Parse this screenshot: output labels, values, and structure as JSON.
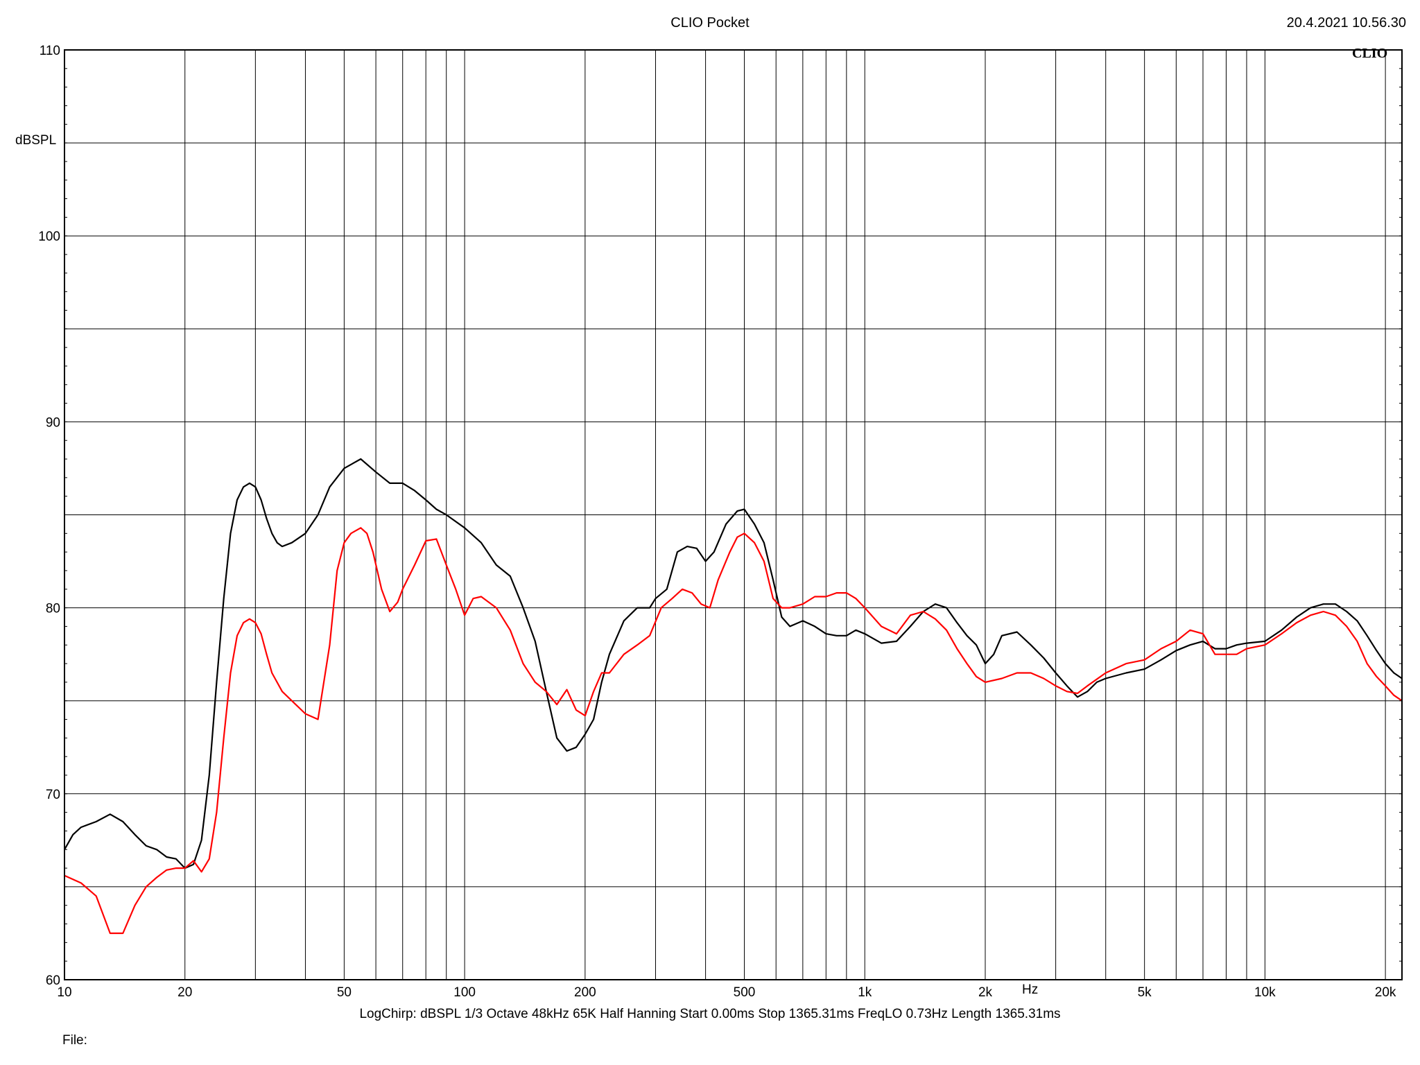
{
  "header": {
    "title": "CLIO Pocket",
    "datetime": "20.4.2021 10.56.30",
    "logo": "CLIO"
  },
  "footer": {
    "params": "LogChirp:  dBSPL   1/3 Octave   48kHz   65K   Half Hanning   Start 0.00ms    Stop 1365.31ms    FreqLO 0.73Hz    Length 1365.31ms",
    "file": "File:"
  },
  "chart_data": {
    "type": "line",
    "title": "CLIO Pocket",
    "xlabel": "Hz",
    "ylabel": "dBSPL",
    "xscale": "log",
    "xlim": [
      10,
      22000
    ],
    "ylim": [
      60,
      110
    ],
    "grid": true,
    "y_ticks": [
      60,
      70,
      80,
      90,
      100,
      110
    ],
    "x_ticks": [
      {
        "v": 10,
        "label": "10"
      },
      {
        "v": 20,
        "label": "20"
      },
      {
        "v": 50,
        "label": "50"
      },
      {
        "v": 100,
        "label": "100"
      },
      {
        "v": 200,
        "label": "200"
      },
      {
        "v": 500,
        "label": "500"
      },
      {
        "v": 1000,
        "label": "1k"
      },
      {
        "v": 2000,
        "label": "2k"
      },
      {
        "v": 5000,
        "label": "5k"
      },
      {
        "v": 10000,
        "label": "10k"
      },
      {
        "v": 20000,
        "label": "20k"
      }
    ],
    "series": [
      {
        "color": "#000000",
        "points": [
          [
            10,
            67
          ],
          [
            10.5,
            67.8
          ],
          [
            11,
            68.2
          ],
          [
            12,
            68.5
          ],
          [
            13,
            68.9
          ],
          [
            14,
            68.5
          ],
          [
            15,
            67.8
          ],
          [
            16,
            67.2
          ],
          [
            17,
            67
          ],
          [
            18,
            66.6
          ],
          [
            19,
            66.5
          ],
          [
            20,
            66
          ],
          [
            21,
            66.2
          ],
          [
            22,
            67.5
          ],
          [
            23,
            71
          ],
          [
            24,
            76
          ],
          [
            25,
            80.5
          ],
          [
            26,
            84
          ],
          [
            27,
            85.8
          ],
          [
            28,
            86.5
          ],
          [
            29,
            86.7
          ],
          [
            30,
            86.5
          ],
          [
            31,
            85.8
          ],
          [
            32,
            84.8
          ],
          [
            33,
            84
          ],
          [
            34,
            83.5
          ],
          [
            35,
            83.3
          ],
          [
            37,
            83.5
          ],
          [
            40,
            84
          ],
          [
            43,
            85
          ],
          [
            46,
            86.5
          ],
          [
            50,
            87.5
          ],
          [
            55,
            88
          ],
          [
            60,
            87.3
          ],
          [
            65,
            86.7
          ],
          [
            70,
            86.7
          ],
          [
            75,
            86.3
          ],
          [
            80,
            85.8
          ],
          [
            85,
            85.3
          ],
          [
            90,
            85
          ],
          [
            100,
            84.3
          ],
          [
            110,
            83.5
          ],
          [
            120,
            82.3
          ],
          [
            130,
            81.7
          ],
          [
            140,
            80
          ],
          [
            150,
            78.2
          ],
          [
            160,
            75.5
          ],
          [
            170,
            73
          ],
          [
            180,
            72.3
          ],
          [
            190,
            72.5
          ],
          [
            200,
            73.2
          ],
          [
            210,
            74
          ],
          [
            220,
            76
          ],
          [
            230,
            77.5
          ],
          [
            250,
            79.3
          ],
          [
            270,
            80
          ],
          [
            290,
            80
          ],
          [
            300,
            80.5
          ],
          [
            320,
            81
          ],
          [
            340,
            83
          ],
          [
            360,
            83.3
          ],
          [
            380,
            83.2
          ],
          [
            400,
            82.5
          ],
          [
            420,
            83
          ],
          [
            450,
            84.5
          ],
          [
            480,
            85.2
          ],
          [
            500,
            85.3
          ],
          [
            530,
            84.5
          ],
          [
            560,
            83.5
          ],
          [
            590,
            81.5
          ],
          [
            620,
            79.5
          ],
          [
            650,
            79
          ],
          [
            700,
            79.3
          ],
          [
            750,
            79
          ],
          [
            800,
            78.6
          ],
          [
            850,
            78.5
          ],
          [
            900,
            78.5
          ],
          [
            950,
            78.8
          ],
          [
            1000,
            78.6
          ],
          [
            1100,
            78.1
          ],
          [
            1200,
            78.2
          ],
          [
            1300,
            79
          ],
          [
            1400,
            79.8
          ],
          [
            1500,
            80.2
          ],
          [
            1600,
            80
          ],
          [
            1700,
            79.2
          ],
          [
            1800,
            78.5
          ],
          [
            1900,
            78
          ],
          [
            2000,
            77
          ],
          [
            2100,
            77.5
          ],
          [
            2200,
            78.5
          ],
          [
            2400,
            78.7
          ],
          [
            2600,
            78
          ],
          [
            2800,
            77.3
          ],
          [
            3000,
            76.5
          ],
          [
            3200,
            75.8
          ],
          [
            3400,
            75.2
          ],
          [
            3600,
            75.5
          ],
          [
            3800,
            76
          ],
          [
            4000,
            76.2
          ],
          [
            4500,
            76.5
          ],
          [
            5000,
            76.7
          ],
          [
            5500,
            77.2
          ],
          [
            6000,
            77.7
          ],
          [
            6500,
            78
          ],
          [
            7000,
            78.2
          ],
          [
            7500,
            77.8
          ],
          [
            8000,
            77.8
          ],
          [
            8500,
            78
          ],
          [
            9000,
            78.1
          ],
          [
            10000,
            78.2
          ],
          [
            11000,
            78.8
          ],
          [
            12000,
            79.5
          ],
          [
            13000,
            80
          ],
          [
            14000,
            80.2
          ],
          [
            15000,
            80.2
          ],
          [
            16000,
            79.8
          ],
          [
            17000,
            79.3
          ],
          [
            18000,
            78.5
          ],
          [
            19000,
            77.7
          ],
          [
            20000,
            77
          ],
          [
            21000,
            76.5
          ],
          [
            22000,
            76.2
          ]
        ]
      },
      {
        "color": "#ff0000",
        "points": [
          [
            10,
            65.6
          ],
          [
            11,
            65.2
          ],
          [
            12,
            64.5
          ],
          [
            13,
            62.5
          ],
          [
            14,
            62.5
          ],
          [
            15,
            64
          ],
          [
            16,
            65
          ],
          [
            17,
            65.5
          ],
          [
            18,
            65.9
          ],
          [
            19,
            66
          ],
          [
            20,
            66
          ],
          [
            21,
            66.4
          ],
          [
            22,
            65.8
          ],
          [
            23,
            66.5
          ],
          [
            24,
            69
          ],
          [
            25,
            73
          ],
          [
            26,
            76.5
          ],
          [
            27,
            78.5
          ],
          [
            28,
            79.2
          ],
          [
            29,
            79.4
          ],
          [
            30,
            79.2
          ],
          [
            31,
            78.6
          ],
          [
            32,
            77.5
          ],
          [
            33,
            76.5
          ],
          [
            35,
            75.5
          ],
          [
            37,
            75
          ],
          [
            40,
            74.3
          ],
          [
            43,
            74
          ],
          [
            46,
            78
          ],
          [
            48,
            82
          ],
          [
            50,
            83.5
          ],
          [
            52,
            84
          ],
          [
            55,
            84.3
          ],
          [
            57,
            84
          ],
          [
            59,
            83
          ],
          [
            62,
            81
          ],
          [
            65,
            79.8
          ],
          [
            68,
            80.3
          ],
          [
            70,
            81
          ],
          [
            75,
            82.3
          ],
          [
            80,
            83.6
          ],
          [
            85,
            83.7
          ],
          [
            90,
            82.3
          ],
          [
            95,
            81
          ],
          [
            100,
            79.6
          ],
          [
            105,
            80.5
          ],
          [
            110,
            80.6
          ],
          [
            120,
            80
          ],
          [
            130,
            78.8
          ],
          [
            140,
            77
          ],
          [
            150,
            76
          ],
          [
            160,
            75.5
          ],
          [
            170,
            74.8
          ],
          [
            180,
            75.6
          ],
          [
            190,
            74.5
          ],
          [
            200,
            74.2
          ],
          [
            210,
            75.5
          ],
          [
            220,
            76.5
          ],
          [
            230,
            76.5
          ],
          [
            250,
            77.5
          ],
          [
            270,
            78
          ],
          [
            290,
            78.5
          ],
          [
            310,
            80
          ],
          [
            330,
            80.5
          ],
          [
            350,
            81
          ],
          [
            370,
            80.8
          ],
          [
            390,
            80.2
          ],
          [
            410,
            80
          ],
          [
            430,
            81.5
          ],
          [
            460,
            83
          ],
          [
            480,
            83.8
          ],
          [
            500,
            84
          ],
          [
            530,
            83.5
          ],
          [
            560,
            82.5
          ],
          [
            590,
            80.5
          ],
          [
            620,
            80
          ],
          [
            650,
            80
          ],
          [
            700,
            80.2
          ],
          [
            750,
            80.6
          ],
          [
            800,
            80.6
          ],
          [
            850,
            80.8
          ],
          [
            900,
            80.8
          ],
          [
            950,
            80.5
          ],
          [
            1000,
            80
          ],
          [
            1100,
            79
          ],
          [
            1200,
            78.6
          ],
          [
            1300,
            79.6
          ],
          [
            1400,
            79.8
          ],
          [
            1500,
            79.4
          ],
          [
            1600,
            78.8
          ],
          [
            1700,
            77.8
          ],
          [
            1800,
            77
          ],
          [
            1900,
            76.3
          ],
          [
            2000,
            76
          ],
          [
            2200,
            76.2
          ],
          [
            2400,
            76.5
          ],
          [
            2600,
            76.5
          ],
          [
            2800,
            76.2
          ],
          [
            3000,
            75.8
          ],
          [
            3200,
            75.5
          ],
          [
            3400,
            75.4
          ],
          [
            3600,
            75.8
          ],
          [
            4000,
            76.5
          ],
          [
            4500,
            77
          ],
          [
            5000,
            77.2
          ],
          [
            5500,
            77.8
          ],
          [
            6000,
            78.2
          ],
          [
            6500,
            78.8
          ],
          [
            7000,
            78.6
          ],
          [
            7500,
            77.5
          ],
          [
            8000,
            77.5
          ],
          [
            8500,
            77.5
          ],
          [
            9000,
            77.8
          ],
          [
            10000,
            78
          ],
          [
            11000,
            78.6
          ],
          [
            12000,
            79.2
          ],
          [
            13000,
            79.6
          ],
          [
            14000,
            79.8
          ],
          [
            15000,
            79.6
          ],
          [
            16000,
            79
          ],
          [
            17000,
            78.2
          ],
          [
            18000,
            77
          ],
          [
            19000,
            76.3
          ],
          [
            20000,
            75.8
          ],
          [
            21000,
            75.3
          ],
          [
            22000,
            75
          ]
        ]
      }
    ]
  }
}
